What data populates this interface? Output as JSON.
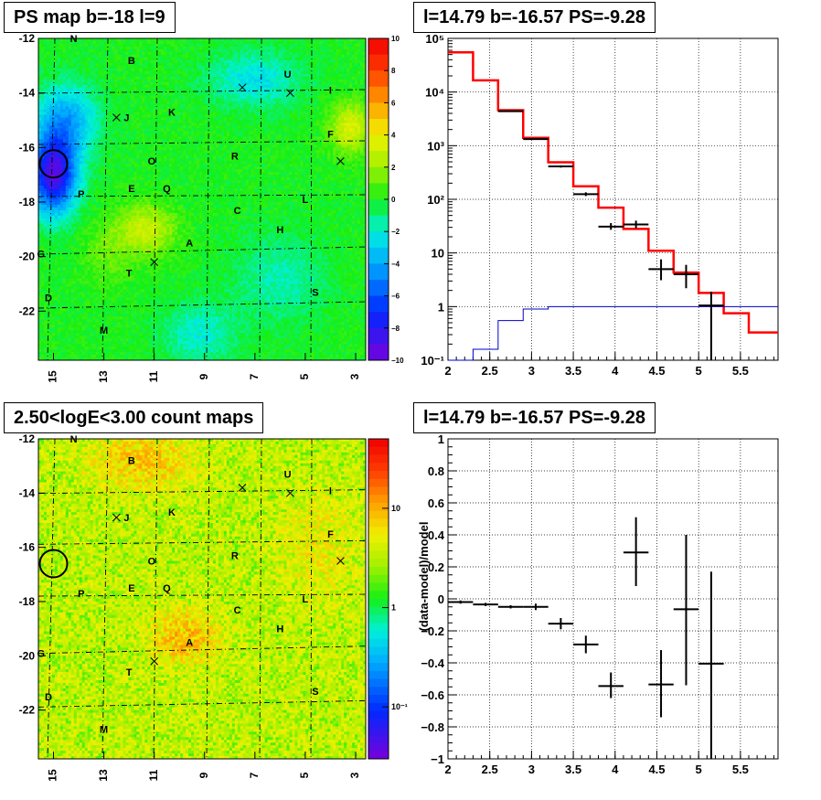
{
  "panels": {
    "ps_map": {
      "title": "PS map b=-18 l=9",
      "colorbar_ticks": [
        "10",
        "8",
        "6",
        "4",
        "2",
        "0",
        "−2",
        "−4",
        "−6",
        "−8",
        "−10"
      ]
    },
    "count_map": {
      "title": "2.50<logE<3.00 count maps",
      "colorbar_ticks": [
        "10",
        "1",
        "10⁻¹"
      ]
    },
    "spectrum": {
      "title": "l=14.79 b=-16.57 PS=-9.28"
    },
    "residual": {
      "title": "l=14.79 b=-16.57 PS=-9.28",
      "ylabel": "(data-model)/model"
    }
  },
  "map_axes": {
    "x_ticks": [
      "15",
      "13",
      "11",
      "9",
      "7",
      "5",
      "3"
    ],
    "y_ticks": [
      "-12",
      "-14",
      "-16",
      "-18",
      "-20",
      "-22"
    ]
  },
  "sources": [
    {
      "label": "N",
      "l": 14.2,
      "b": -12.0
    },
    {
      "label": "B",
      "l": 11.9,
      "b": -12.8
    },
    {
      "label": "U",
      "l": 5.7,
      "b": -13.3
    },
    {
      "label": "I",
      "l": 4.0,
      "b": -13.9
    },
    {
      "label": "K",
      "l": 10.3,
      "b": -14.7
    },
    {
      "label": "J",
      "l": 12.1,
      "b": -14.9
    },
    {
      "label": "F",
      "l": 4.0,
      "b": -15.5
    },
    {
      "label": "R",
      "l": 7.8,
      "b": -16.3
    },
    {
      "label": "O",
      "l": 11.1,
      "b": -16.5
    },
    {
      "label": "E",
      "l": 11.9,
      "b": -17.5
    },
    {
      "label": "Q",
      "l": 10.5,
      "b": -17.5
    },
    {
      "label": "P",
      "l": 13.9,
      "b": -17.7
    },
    {
      "label": "L",
      "l": 5.0,
      "b": -17.9
    },
    {
      "label": "C",
      "l": 7.7,
      "b": -18.3
    },
    {
      "label": "H",
      "l": 6.0,
      "b": -19.0
    },
    {
      "label": "A",
      "l": 9.6,
      "b": -19.5
    },
    {
      "label": "G",
      "l": 15.5,
      "b": -19.9
    },
    {
      "label": "T",
      "l": 12.0,
      "b": -20.6
    },
    {
      "label": "S",
      "l": 4.6,
      "b": -21.3
    },
    {
      "label": "D",
      "l": 15.2,
      "b": -21.5
    },
    {
      "label": "M",
      "l": 13.0,
      "b": -22.7
    }
  ],
  "crosses": [
    {
      "l": 7.5,
      "b": -13.8
    },
    {
      "l": 5.6,
      "b": -14.0
    },
    {
      "l": 12.5,
      "b": -14.9
    },
    {
      "l": 3.6,
      "b": -16.5
    },
    {
      "l": 11.0,
      "b": -20.2
    }
  ],
  "circle": {
    "l": 15.0,
    "b": -16.6
  },
  "chart_data": [
    {
      "type": "heatmap",
      "title": "PS map b=-18 l=9",
      "xlim": [
        15.6,
        2.6
      ],
      "ylim": [
        -23.8,
        -12.0
      ],
      "zlim": [
        -10,
        10
      ],
      "colormap": "rainbow (violet=-10, green=0, red=10)",
      "grid": true
    },
    {
      "type": "heatmap",
      "title": "2.50<logE<3.00 count maps",
      "xlim": [
        15.6,
        2.6
      ],
      "ylim": [
        -23.8,
        -12.0
      ],
      "zlim": [
        0.03,
        50
      ],
      "log_z": true,
      "grid": true
    },
    {
      "type": "line",
      "title": "l=14.79 b=-16.57 PS=-9.28",
      "xlim": [
        2,
        5.95
      ],
      "ylim": [
        0.1,
        100000
      ],
      "log_y": true,
      "x_ticks": [
        "2",
        "2.5",
        "3",
        "3.5",
        "4",
        "4.5",
        "5",
        "5.5"
      ],
      "y_ticks": [
        "10⁻¹",
        "1",
        "10",
        "10²",
        "10³",
        "10⁴",
        "10⁵"
      ],
      "grid": true,
      "model_edges": [
        2.0,
        2.3,
        2.6,
        2.9,
        3.2,
        3.5,
        3.8,
        4.1,
        4.4,
        4.7,
        5.0,
        5.3,
        5.6,
        5.95
      ],
      "series": [
        {
          "color": "#ff0000",
          "step_values": [
            55000,
            16500,
            4600,
            1400,
            490,
            175,
            70,
            28,
            11,
            4.3,
            1.8,
            0.75,
            0.33
          ]
        },
        {
          "color": "#0000cc",
          "step_values": [
            0.1,
            0.16,
            0.55,
            0.9,
            1.0,
            1.0,
            1.0,
            1.0,
            1.0,
            1.0,
            1.0,
            1.0,
            1.0
          ]
        }
      ],
      "data_points": [
        {
          "x": 2.75,
          "xerr": 0.15,
          "y": 4400,
          "ylo": 4300,
          "yhi": 4500
        },
        {
          "x": 3.05,
          "xerr": 0.15,
          "y": 1330,
          "ylo": 1290,
          "yhi": 1370
        },
        {
          "x": 3.35,
          "xerr": 0.15,
          "y": 410,
          "ylo": 390,
          "yhi": 430
        },
        {
          "x": 3.65,
          "xerr": 0.15,
          "y": 125,
          "ylo": 115,
          "yhi": 135
        },
        {
          "x": 3.95,
          "xerr": 0.15,
          "y": 31,
          "ylo": 27,
          "yhi": 36
        },
        {
          "x": 4.25,
          "xerr": 0.15,
          "y": 34,
          "ylo": 29,
          "yhi": 40
        },
        {
          "x": 4.55,
          "xerr": 0.15,
          "y": 5.0,
          "ylo": 3.1,
          "yhi": 7.6
        },
        {
          "x": 4.85,
          "xerr": 0.15,
          "y": 4.0,
          "ylo": 2.2,
          "yhi": 6.0
        },
        {
          "x": 5.15,
          "xerr": 0.15,
          "y": 1.05,
          "ylo": 0.1,
          "yhi": 1.9
        }
      ]
    },
    {
      "type": "scatter",
      "title": "l=14.79 b=-16.57 PS=-9.28",
      "ylabel": "(data-model)/model",
      "xlim": [
        2,
        5.95
      ],
      "ylim": [
        -1,
        1
      ],
      "x_ticks": [
        "2",
        "2.5",
        "3",
        "3.5",
        "4",
        "4.5",
        "5",
        "5.5"
      ],
      "y_ticks": [
        "-1",
        "-0.8",
        "-0.6",
        "-0.4",
        "-0.2",
        "0",
        "0.2",
        "0.4",
        "0.6",
        "0.8",
        "1"
      ],
      "grid": true,
      "data_points": [
        {
          "x": 2.15,
          "xerr": 0.15,
          "y": -0.02,
          "ylo": -0.03,
          "yhi": -0.01
        },
        {
          "x": 2.45,
          "xerr": 0.15,
          "y": -0.035,
          "ylo": -0.045,
          "yhi": -0.025
        },
        {
          "x": 2.75,
          "xerr": 0.15,
          "y": -0.05,
          "ylo": -0.06,
          "yhi": -0.04
        },
        {
          "x": 3.05,
          "xerr": 0.15,
          "y": -0.05,
          "ylo": -0.07,
          "yhi": -0.03
        },
        {
          "x": 3.35,
          "xerr": 0.15,
          "y": -0.155,
          "ylo": -0.19,
          "yhi": -0.12
        },
        {
          "x": 3.65,
          "xerr": 0.15,
          "y": -0.285,
          "ylo": -0.34,
          "yhi": -0.23
        },
        {
          "x": 3.95,
          "xerr": 0.15,
          "y": -0.545,
          "ylo": -0.62,
          "yhi": -0.46
        },
        {
          "x": 4.25,
          "xerr": 0.15,
          "y": 0.29,
          "ylo": 0.08,
          "yhi": 0.51
        },
        {
          "x": 4.55,
          "xerr": 0.15,
          "y": -0.535,
          "ylo": -0.74,
          "yhi": -0.32
        },
        {
          "x": 4.85,
          "xerr": 0.15,
          "y": -0.065,
          "ylo": -0.54,
          "yhi": 0.4
        },
        {
          "x": 5.15,
          "xerr": 0.15,
          "y": -0.405,
          "ylo": -1.0,
          "yhi": 0.17
        }
      ]
    }
  ]
}
